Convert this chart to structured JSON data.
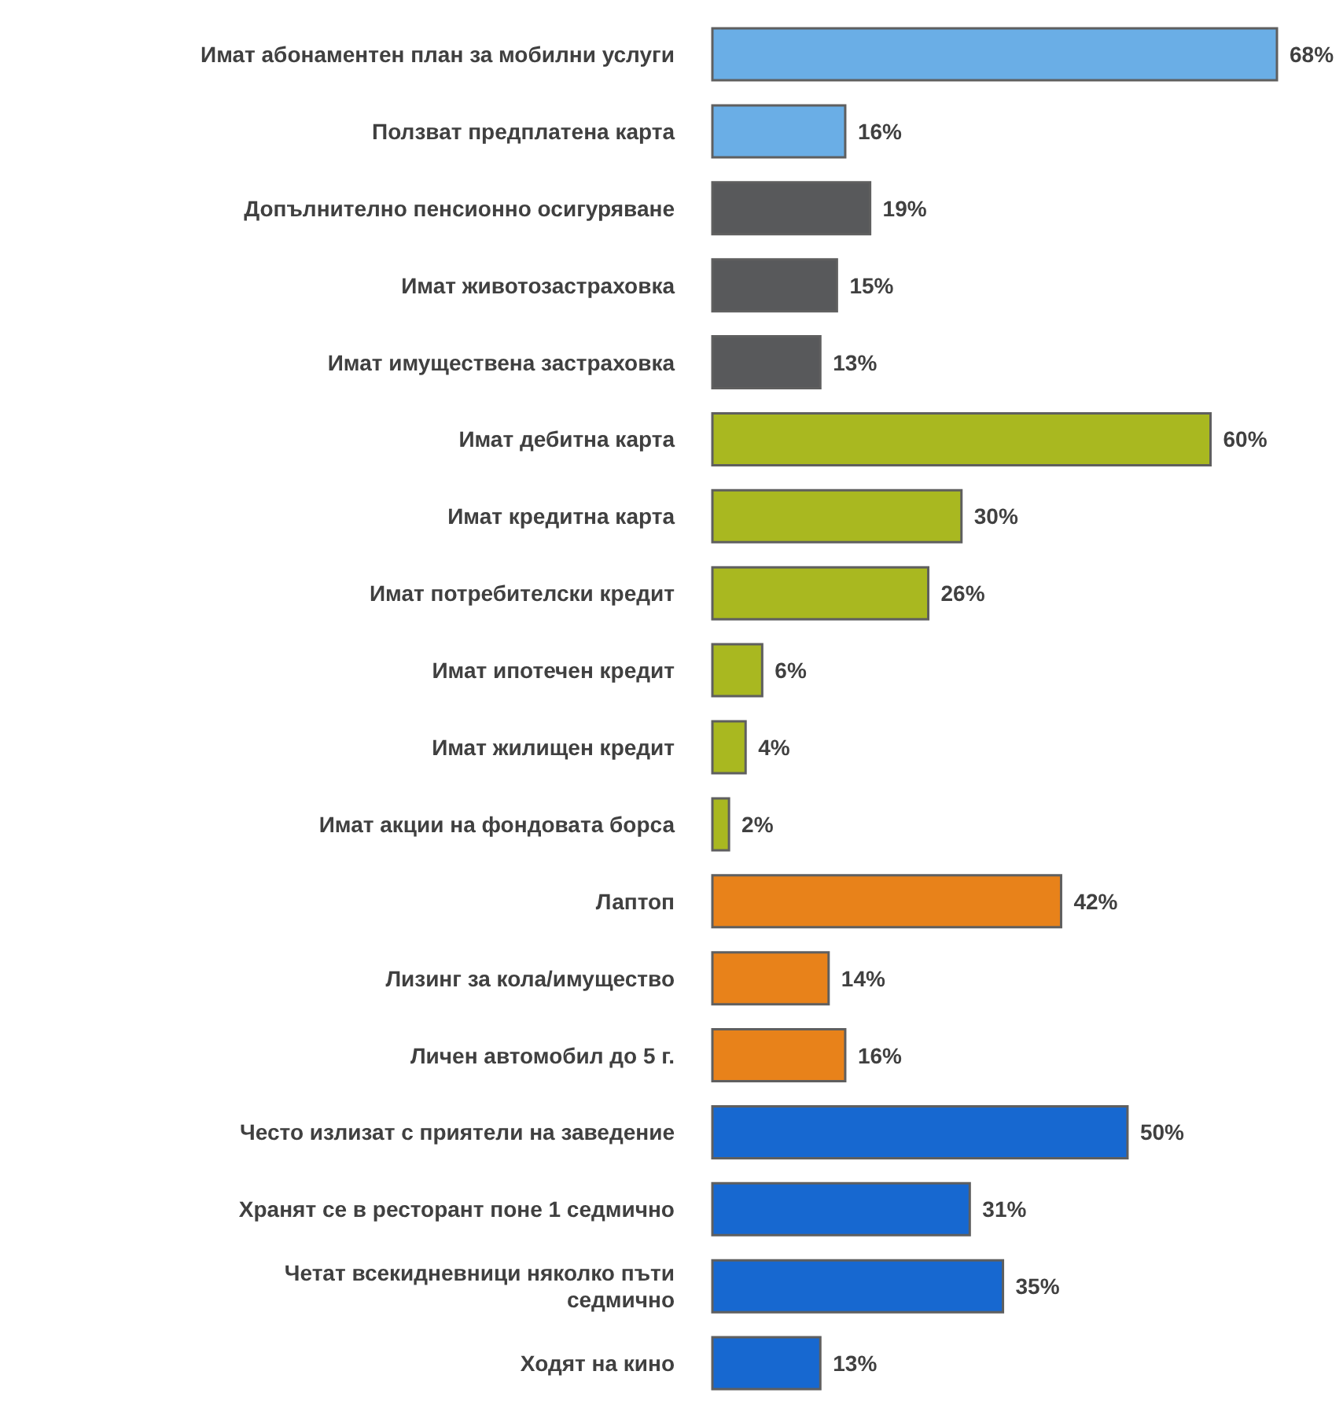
{
  "chart_data": {
    "type": "bar",
    "orientation": "horizontal",
    "categories": [
      "Имат абонаментен план за мобилни услуги",
      "Ползват предплатена карта",
      "Допълнително пенсионно осигуряване",
      "Имат животозастраховка",
      "Имат имуществена застраховка",
      "Имат дебитна карта",
      "Имат кредитна карта",
      "Имат потребителски кредит",
      "Имат ипотечен кредит",
      "Имат жилищен кредит",
      "Имат акции на фондовата борса",
      "Лаптоп",
      "Лизинг за кола/имущество",
      "Личен автомобил до 5 г.",
      "Често излизат с приятели на заведение",
      "Хранят се в ресторант поне 1 седмично",
      "Четат всекидневници няколко пъти седмично",
      "Ходят на кино"
    ],
    "values": [
      68,
      16,
      19,
      15,
      13,
      60,
      30,
      26,
      6,
      4,
      2,
      42,
      14,
      16,
      50,
      31,
      35,
      13
    ],
    "value_labels": [
      "68%",
      "16%",
      "19%",
      "15%",
      "13%",
      "60%",
      "30%",
      "26%",
      "6%",
      "4%",
      "2%",
      "42%",
      "14%",
      "16%",
      "50%",
      "31%",
      "35%",
      "13%"
    ],
    "colors": [
      "#6aaee6",
      "#6aaee6",
      "#58595b",
      "#58595b",
      "#58595b",
      "#a9b820",
      "#a9b820",
      "#a9b820",
      "#a9b820",
      "#a9b820",
      "#a9b820",
      "#e8821a",
      "#e8821a",
      "#e8821a",
      "#1768d0",
      "#1768d0",
      "#1768d0",
      "#1768d0"
    ]
  }
}
